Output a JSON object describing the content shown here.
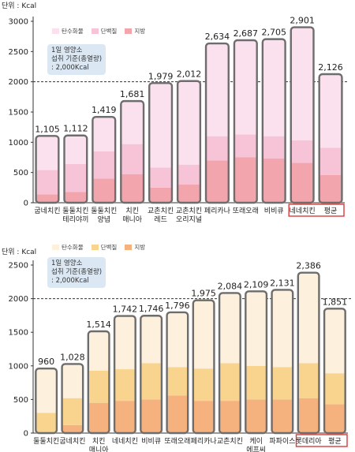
{
  "chart_data": [
    {
      "type": "bar",
      "unit_label": "단위 : Kcal",
      "legend": [
        "탄수화물",
        "단백질",
        "지방"
      ],
      "colors": {
        "carb": "#fbe0ee",
        "protein": "#f7c3d6",
        "fat": "#f3a5ad",
        "highlight": "#d93b3b"
      },
      "note": [
        "1일 영양소",
        "섭취 기준(총열량)",
        ": 2,000Kcal"
      ],
      "note_bg": "#dbe8f4",
      "reference_line": 2000,
      "ylim": [
        0,
        3000
      ],
      "yticks": [
        "0",
        "500",
        "1000",
        "1500",
        "2000",
        "2500",
        "3000"
      ],
      "categories": [
        [
          "굽네치킨"
        ],
        [
          "둘둘치킨",
          "테리야끼"
        ],
        [
          "둘둘치킨",
          "양념"
        ],
        [
          "치킨",
          "매니아"
        ],
        [
          "교촌치킨",
          "레드"
        ],
        [
          "교촌치킨",
          "오리지널"
        ],
        [
          "페리카나"
        ],
        [
          "또래오래"
        ],
        [
          "비비큐"
        ],
        [
          "네네치킨"
        ],
        [
          "평균"
        ]
      ],
      "value_labels": [
        "1,105",
        "1,112",
        "1,419",
        "1,681",
        "1,979",
        "2,012",
        "2,634",
        "2,687",
        "2,705",
        "2,901",
        "2,126"
      ],
      "values": [
        1105,
        1112,
        1419,
        1681,
        1979,
        2012,
        2634,
        2687,
        2705,
        2901,
        2126
      ],
      "series": [
        {
          "name": "지방",
          "values": [
            140,
            180,
            400,
            470,
            250,
            300,
            700,
            750,
            730,
            660,
            460
          ]
        },
        {
          "name": "단백질",
          "values": [
            400,
            460,
            450,
            500,
            330,
            330,
            400,
            380,
            370,
            370,
            450
          ]
        },
        {
          "name": "탄수화물",
          "values": [
            565,
            472,
            569,
            711,
            1399,
            1382,
            1534,
            1557,
            1605,
            1871,
            1216
          ]
        }
      ],
      "highlight": [
        9,
        10
      ]
    },
    {
      "type": "bar",
      "unit_label": "단위 : Kcal",
      "legend": [
        "탄수화물",
        "단백질",
        "지방"
      ],
      "colors": {
        "carb": "#fdf0dc",
        "protein": "#f9d48e",
        "fat": "#f5b27f",
        "highlight": "#d93b3b"
      },
      "note": [
        "1일 영양소",
        "섭취 기준(총열량)",
        ": 2,000Kcal"
      ],
      "note_bg": "#dbe8f4",
      "reference_line": 2000,
      "ylim": [
        0,
        2500
      ],
      "yticks": [
        "0",
        "500",
        "1000",
        "1500",
        "2000",
        "2500"
      ],
      "categories": [
        [
          "둘둘치킨"
        ],
        [
          "굽네치킨"
        ],
        [
          "치킨",
          "매니아"
        ],
        [
          "네네치킨"
        ],
        [
          "비비큐"
        ],
        [
          "또래오래"
        ],
        [
          "페리카나"
        ],
        [
          "교촌치킨"
        ],
        [
          "케이",
          "에프씨"
        ],
        [
          "파파이스"
        ],
        [
          "롯데리아"
        ],
        [
          "평균"
        ]
      ],
      "value_labels": [
        "960",
        "1,028",
        "1,514",
        "1,742",
        "1,746",
        "1,796",
        "1,975",
        "2,084",
        "2,109",
        "2,131",
        "2,386",
        "1,851"
      ],
      "values": [
        960,
        1028,
        1514,
        1742,
        1746,
        1796,
        1975,
        2084,
        2109,
        2131,
        2386,
        1851
      ],
      "series": [
        {
          "name": "지방",
          "values": [
            0,
            120,
            450,
            480,
            500,
            560,
            480,
            480,
            500,
            500,
            520,
            430
          ]
        },
        {
          "name": "단백질",
          "values": [
            300,
            400,
            480,
            470,
            540,
            420,
            480,
            560,
            500,
            480,
            520,
            460
          ]
        },
        {
          "name": "탄수화물",
          "values": [
            660,
            508,
            584,
            792,
            706,
            816,
            1015,
            1044,
            1109,
            1151,
            1346,
            961
          ]
        }
      ],
      "highlight": [
        10,
        11
      ]
    }
  ]
}
